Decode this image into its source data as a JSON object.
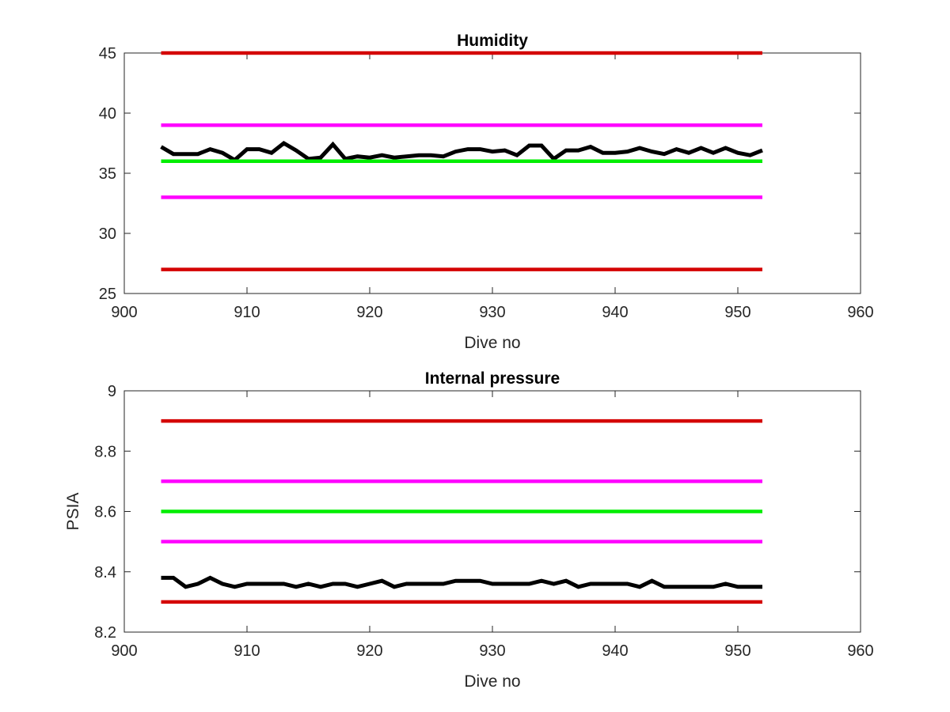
{
  "chart_data": [
    {
      "type": "line",
      "title": "Humidity",
      "xlabel": "Dive no",
      "ylabel": "",
      "xlim": [
        900,
        960
      ],
      "ylim": [
        25,
        45
      ],
      "xticks": [
        "900",
        "910",
        "920",
        "930",
        "940",
        "950",
        "960"
      ],
      "yticks": [
        "25",
        "30",
        "35",
        "40",
        "45"
      ],
      "grid": false,
      "series": [
        {
          "color": "#000000",
          "x": [
            903,
            904,
            905,
            906,
            907,
            908,
            909,
            910,
            911,
            912,
            913,
            914,
            915,
            916,
            917,
            918,
            919,
            920,
            921,
            922,
            923,
            924,
            925,
            926,
            927,
            928,
            929,
            930,
            931,
            932,
            933,
            934,
            935,
            936,
            937,
            938,
            939,
            940,
            941,
            942,
            943,
            944,
            945,
            946,
            947,
            948,
            949,
            950,
            951,
            952
          ],
          "values": [
            37.2,
            36.6,
            36.6,
            36.6,
            37.0,
            36.7,
            36.1,
            37.0,
            37.0,
            36.7,
            37.5,
            36.9,
            36.2,
            36.3,
            37.4,
            36.2,
            36.4,
            36.3,
            36.5,
            36.3,
            36.4,
            36.5,
            36.5,
            36.4,
            36.8,
            37.0,
            37.0,
            36.8,
            36.9,
            36.5,
            37.3,
            37.3,
            36.2,
            36.9,
            36.9,
            37.2,
            36.7,
            36.7,
            36.8,
            37.1,
            36.8,
            36.6,
            37.0,
            36.7,
            37.1,
            36.7,
            37.1,
            36.7,
            36.5,
            36.9
          ]
        },
        {
          "color": "#d40000",
          "x": [
            903,
            952
          ],
          "values": [
            45,
            45
          ]
        },
        {
          "color": "#ff00ff",
          "x": [
            903,
            952
          ],
          "values": [
            39,
            39
          ]
        },
        {
          "color": "#00ee00",
          "x": [
            903,
            952
          ],
          "values": [
            36,
            36
          ]
        },
        {
          "color": "#ff00ff",
          "x": [
            903,
            952
          ],
          "values": [
            33,
            33
          ]
        },
        {
          "color": "#d40000",
          "x": [
            903,
            952
          ],
          "values": [
            27,
            27
          ]
        }
      ]
    },
    {
      "type": "line",
      "title": "Internal pressure",
      "xlabel": "Dive no",
      "ylabel": "PSIA",
      "xlim": [
        900,
        960
      ],
      "ylim": [
        8.2,
        9.0
      ],
      "xticks": [
        "900",
        "910",
        "920",
        "930",
        "940",
        "950",
        "960"
      ],
      "yticks": [
        "8.2",
        "8.4",
        "8.6",
        "8.8",
        "9"
      ],
      "grid": false,
      "series": [
        {
          "color": "#000000",
          "x": [
            903,
            904,
            905,
            906,
            907,
            908,
            909,
            910,
            911,
            912,
            913,
            914,
            915,
            916,
            917,
            918,
            919,
            920,
            921,
            922,
            923,
            924,
            925,
            926,
            927,
            928,
            929,
            930,
            931,
            932,
            933,
            934,
            935,
            936,
            937,
            938,
            939,
            940,
            941,
            942,
            943,
            944,
            945,
            946,
            947,
            948,
            949,
            950,
            951,
            952
          ],
          "values": [
            8.38,
            8.38,
            8.35,
            8.36,
            8.38,
            8.36,
            8.35,
            8.36,
            8.36,
            8.36,
            8.36,
            8.35,
            8.36,
            8.35,
            8.36,
            8.36,
            8.35,
            8.36,
            8.37,
            8.35,
            8.36,
            8.36,
            8.36,
            8.36,
            8.37,
            8.37,
            8.37,
            8.36,
            8.36,
            8.36,
            8.36,
            8.37,
            8.36,
            8.37,
            8.35,
            8.36,
            8.36,
            8.36,
            8.36,
            8.35,
            8.37,
            8.35,
            8.35,
            8.35,
            8.35,
            8.35,
            8.36,
            8.35,
            8.35,
            8.35
          ]
        },
        {
          "color": "#d40000",
          "x": [
            903,
            952
          ],
          "values": [
            8.9,
            8.9
          ]
        },
        {
          "color": "#ff00ff",
          "x": [
            903,
            952
          ],
          "values": [
            8.7,
            8.7
          ]
        },
        {
          "color": "#00ee00",
          "x": [
            903,
            952
          ],
          "values": [
            8.6,
            8.6
          ]
        },
        {
          "color": "#ff00ff",
          "x": [
            903,
            952
          ],
          "values": [
            8.5,
            8.5
          ]
        },
        {
          "color": "#d40000",
          "x": [
            903,
            952
          ],
          "values": [
            8.3,
            8.3
          ]
        }
      ]
    }
  ]
}
